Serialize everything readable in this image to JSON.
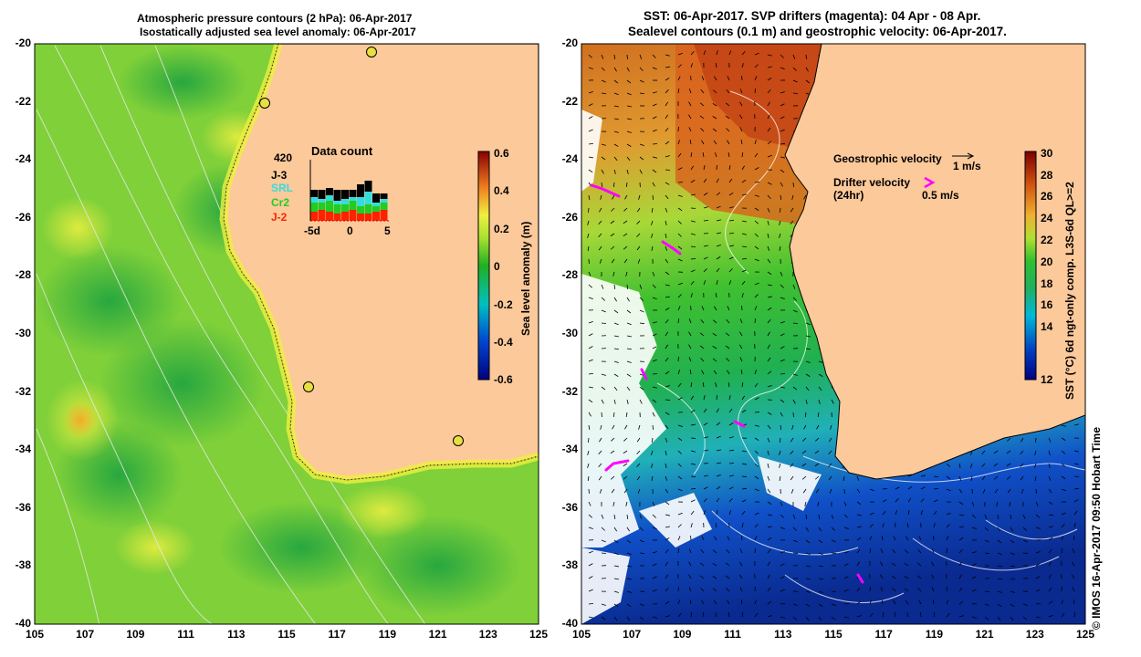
{
  "left_panel": {
    "title_line1": "Atmospheric pressure contours (2 hPa): 06-Apr-2017",
    "title_line2": "Isostatically adjusted sea level anomaly: 06-Apr-2017",
    "colorbar_label": "Sea level anomaly (m)",
    "colorbar_ticks": [
      "0.6",
      "0.4",
      "0.2",
      "0",
      "-0.2",
      "-0.4",
      "-0.6"
    ],
    "colors": {
      "ocean": "#7fd039",
      "land": "#fcc99a",
      "coast": "#000000"
    }
  },
  "right_panel": {
    "title_line1": "SST: 06-Apr-2017. SVP drifters (magenta): 04 Apr - 08 Apr.",
    "title_line2": "Sealevel contours (0.1 m) and geostrophic velocity: 06-Apr-2017.",
    "colorbar_label": "SST (°C) 6d ngt-only comp. L3S-6d QL>=2",
    "colorbar_ticks": [
      "30",
      "28",
      "26",
      "24",
      "22",
      "20",
      "18",
      "16",
      "14",
      "12"
    ],
    "geostrophic_label": "Geostrophic velocity",
    "geostrophic_scale": "1 m/s",
    "drifter_label_line1": "Drifter velocity",
    "drifter_label_line2": "(24hr)",
    "drifter_scale": "0.5 m/s",
    "colors": {
      "land": "#fcc99a",
      "drifter": "#ff00ff"
    }
  },
  "data_count": {
    "title": "Data count",
    "max_label": "420",
    "missions": [
      "J-3",
      "SRL",
      "Cr2",
      "J-2"
    ],
    "mission_colors": [
      "#000000",
      "#33dddd",
      "#22cc22",
      "#ff2200"
    ],
    "x_ticks": [
      "-5d",
      "0",
      "5"
    ]
  },
  "axes": {
    "lat_ticks": [
      "-20",
      "-22",
      "-24",
      "-26",
      "-28",
      "-30",
      "-32",
      "-34",
      "-36",
      "-38",
      "-40"
    ],
    "lon_ticks": [
      "105",
      "107",
      "109",
      "111",
      "113",
      "115",
      "117",
      "119",
      "121",
      "123",
      "125"
    ]
  },
  "credit": "© IMOS 16-Apr-2017 09:50 Hobart Time"
}
